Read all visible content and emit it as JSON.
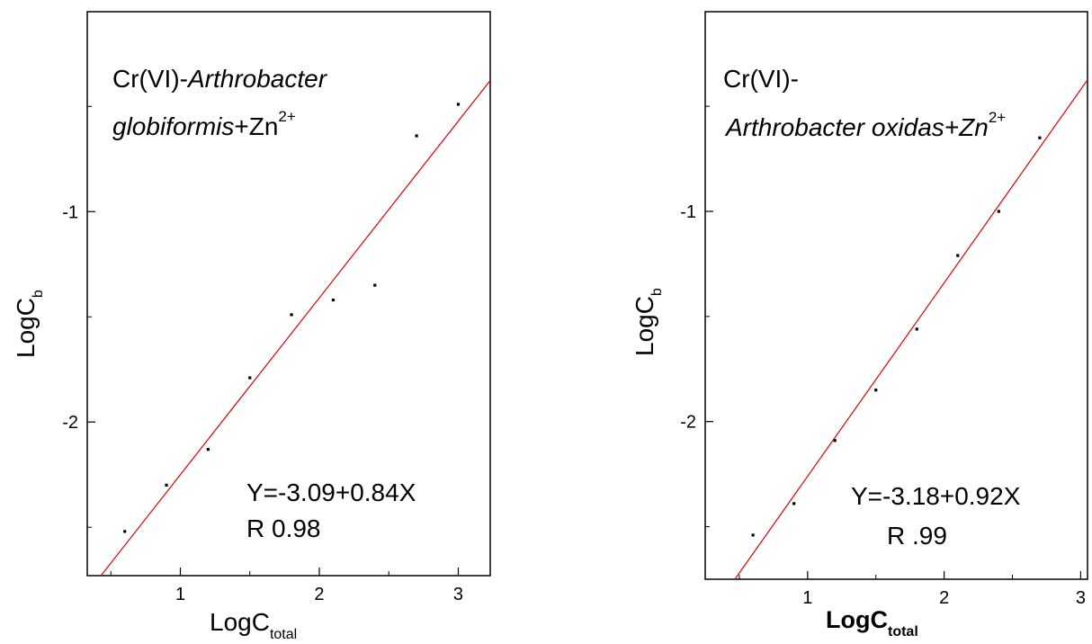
{
  "chart_data": [
    {
      "type": "scatter",
      "title_lines": [
        "Cr(VI)-",
        "Arthrobacter",
        "globiformis",
        "+Zn",
        "2+"
      ],
      "xlabel": "LogC",
      "xlabel_sub": "total",
      "ylabel": "LogC",
      "ylabel_sub": "b",
      "xlim": [
        0.33,
        3.23
      ],
      "ylim": [
        -2.73,
        -0.05
      ],
      "xticks": [
        {
          "v": 1,
          "label": "1"
        },
        {
          "v": 2,
          "label": "2"
        },
        {
          "v": 3,
          "label": "3"
        }
      ],
      "yticks": [
        {
          "v": -1,
          "label": "-1"
        },
        {
          "v": -2,
          "label": "-2"
        }
      ],
      "series": [
        {
          "x": [
            0.6,
            0.9,
            1.2,
            1.5,
            1.8,
            2.1,
            2.4,
            2.7,
            3.0
          ],
          "y": [
            -2.52,
            -2.3,
            -2.13,
            -1.79,
            -1.49,
            -1.42,
            -1.35,
            -0.64,
            -0.49
          ],
          "color": "#000000"
        }
      ],
      "fit": {
        "intercept": -3.09,
        "slope": 0.84,
        "color": "#e00000"
      },
      "annotations": [
        "Y=-3.09+0.84X",
        "R 0.98"
      ]
    },
    {
      "type": "scatter",
      "title_lines": [
        "Cr(VI)-",
        "Arthrobacter oxidas",
        "+Zn",
        "2+"
      ],
      "xlabel": "LogC",
      "xlabel_sub": "total",
      "ylabel": "LogC",
      "ylabel_sub": "b",
      "xlim": [
        0.25,
        3.05
      ],
      "ylim": [
        -2.75,
        -0.05
      ],
      "xticks": [
        {
          "v": 1,
          "label": "1"
        },
        {
          "v": 2,
          "label": "2"
        },
        {
          "v": 3,
          "label": "3"
        }
      ],
      "yticks": [
        {
          "v": -1,
          "label": "-1"
        },
        {
          "v": -2,
          "label": "-2"
        }
      ],
      "series": [
        {
          "x": [
            0.6,
            0.9,
            1.2,
            1.5,
            1.8,
            2.1,
            2.4,
            2.7
          ],
          "y": [
            -2.54,
            -2.39,
            -2.09,
            -1.85,
            -1.56,
            -1.21,
            -1.0,
            -0.65
          ],
          "color": "#000000"
        }
      ],
      "fit": {
        "intercept": -3.18,
        "slope": 0.92,
        "color": "#e00000"
      },
      "annotations": [
        "Y=-3.18+0.92X",
        "R .99"
      ]
    }
  ]
}
